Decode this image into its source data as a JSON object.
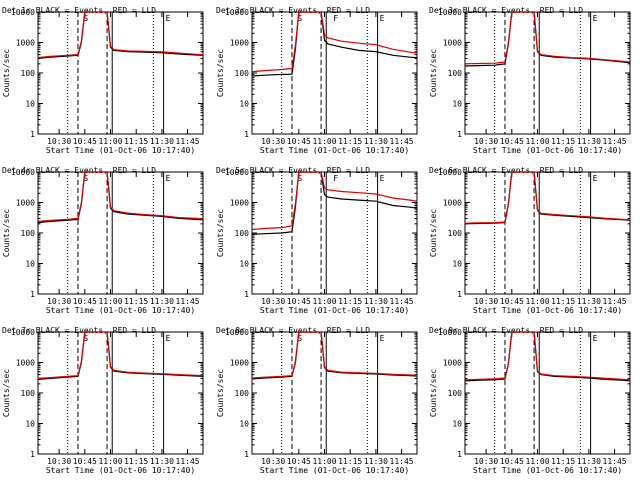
{
  "figure": {
    "black_label": "Events",
    "red_label": "LLD",
    "colors": {
      "background": "#ffffff",
      "events": "#000000",
      "lld": "#e00000"
    }
  },
  "chart_data": [
    {
      "type": "line",
      "title": "Det 1r BLACK = Events, RED = LLD",
      "xlabel": "Start Time (01-Oct-06 10:17:40)",
      "ylabel": "Counts/sec",
      "yscale": "log",
      "ylim": [
        1,
        10000
      ],
      "xlim": [
        "10:17:40",
        "11:54:00"
      ],
      "x_ticks": [
        "10:30",
        "10:45",
        "11:00",
        "11:15",
        "11:30",
        "11:45"
      ],
      "y_ticks": [
        "1",
        "10",
        "100",
        "1000",
        "10000"
      ],
      "markers": [
        "S",
        "",
        "E"
      ],
      "series": [
        {
          "name": "Events",
          "x": [
            "10:17:40",
            "10:25",
            "10:35",
            "10:38",
            "10:41",
            "10:43",
            "10:45",
            "10:55",
            "10:58",
            "11:00",
            "11:02",
            "11:10",
            "11:20",
            "11:30",
            "11:40",
            "11:50",
            "11:54"
          ],
          "y": [
            300,
            330,
            360,
            370,
            380,
            1000,
            10000,
            10000,
            10000,
            700,
            550,
            500,
            480,
            460,
            420,
            390,
            380
          ]
        },
        {
          "name": "LLD",
          "x": [
            "10:17:40",
            "10:25",
            "10:35",
            "10:38",
            "10:41",
            "10:43",
            "10:45",
            "10:55",
            "10:58",
            "11:00",
            "11:02",
            "11:10",
            "11:20",
            "11:30",
            "11:40",
            "11:50",
            "11:54"
          ],
          "y": [
            320,
            350,
            380,
            390,
            400,
            1100,
            10000,
            10000,
            10000,
            750,
            580,
            530,
            510,
            490,
            450,
            410,
            400
          ]
        }
      ]
    },
    {
      "type": "line",
      "title": "Det 2r BLACK = Events, RED = LLD",
      "xlabel": "Start Time (01-Oct-06 10:17:40)",
      "ylabel": "Counts/sec",
      "yscale": "log",
      "ylim": [
        1,
        10000
      ],
      "xlim": [
        "10:17:40",
        "11:54:00"
      ],
      "x_ticks": [
        "10:30",
        "10:45",
        "11:00",
        "11:15",
        "11:30",
        "11:45"
      ],
      "y_ticks": [
        "1",
        "10",
        "100",
        "1000",
        "10000"
      ],
      "markers": [
        "S",
        "F",
        "E"
      ],
      "series": [
        {
          "name": "Events",
          "x": [
            "10:17:40",
            "10:25",
            "10:35",
            "10:38",
            "10:41",
            "10:43",
            "10:45",
            "10:55",
            "10:58",
            "11:00",
            "11:02",
            "11:10",
            "11:20",
            "11:30",
            "11:40",
            "11:50",
            "11:54"
          ],
          "y": [
            80,
            85,
            90,
            90,
            92,
            600,
            10000,
            10000,
            10000,
            1200,
            900,
            700,
            550,
            500,
            380,
            330,
            320
          ]
        },
        {
          "name": "LLD",
          "x": [
            "10:17:40",
            "10:25",
            "10:35",
            "10:38",
            "10:41",
            "10:43",
            "10:45",
            "10:55",
            "10:58",
            "11:00",
            "11:02",
            "11:10",
            "11:20",
            "11:30",
            "11:40",
            "11:50",
            "11:54"
          ],
          "y": [
            110,
            120,
            130,
            135,
            140,
            800,
            10000,
            10000,
            10000,
            1800,
            1400,
            1100,
            950,
            850,
            600,
            480,
            450
          ]
        }
      ]
    },
    {
      "type": "line",
      "title": "Det 3r BLACK = Events, RED = LLD",
      "xlabel": "Start Time (01-Oct-06 10:17:40)",
      "ylabel": "Counts/sec",
      "yscale": "log",
      "ylim": [
        1,
        10000
      ],
      "xlim": [
        "10:17:40",
        "11:54:00"
      ],
      "x_ticks": [
        "10:30",
        "10:45",
        "11:00",
        "11:15",
        "11:30",
        "11:45"
      ],
      "y_ticks": [
        "1",
        "10",
        "100",
        "1000",
        "10000"
      ],
      "markers": [
        "",
        "",
        "E"
      ],
      "series": [
        {
          "name": "Events",
          "x": [
            "10:17:40",
            "10:25",
            "10:35",
            "10:38",
            "10:41",
            "10:43",
            "10:45",
            "10:55",
            "10:58",
            "11:00",
            "11:02",
            "11:10",
            "11:20",
            "11:30",
            "11:40",
            "11:50",
            "11:54"
          ],
          "y": [
            170,
            175,
            180,
            190,
            200,
            900,
            10000,
            10000,
            10000,
            500,
            380,
            330,
            310,
            290,
            260,
            230,
            220
          ]
        },
        {
          "name": "LLD",
          "x": [
            "10:17:40",
            "10:25",
            "10:35",
            "10:38",
            "10:41",
            "10:43",
            "10:45",
            "10:55",
            "10:58",
            "11:00",
            "11:02",
            "11:10",
            "11:20",
            "11:30",
            "11:40",
            "11:50",
            "11:54"
          ],
          "y": [
            200,
            205,
            210,
            220,
            230,
            1000,
            10000,
            10000,
            10000,
            530,
            400,
            350,
            320,
            300,
            270,
            240,
            230
          ]
        }
      ]
    },
    {
      "type": "line",
      "title": "Det 4r BLACK = Events, RED = LLD",
      "xlabel": "Start Time (01-Oct-06 10:17:40)",
      "ylabel": "Counts/sec",
      "yscale": "log",
      "ylim": [
        1,
        10000
      ],
      "xlim": [
        "10:17:40",
        "11:54:00"
      ],
      "x_ticks": [
        "10:30",
        "10:45",
        "11:00",
        "11:15",
        "11:30",
        "11:45"
      ],
      "y_ticks": [
        "1",
        "10",
        "100",
        "1000",
        "10000"
      ],
      "markers": [
        "S",
        "",
        "E"
      ],
      "series": [
        {
          "name": "Events",
          "x": [
            "10:17:40",
            "10:25",
            "10:35",
            "10:38",
            "10:41",
            "10:43",
            "10:45",
            "10:55",
            "10:58",
            "11:00",
            "11:02",
            "11:10",
            "11:20",
            "11:30",
            "11:40",
            "11:50",
            "11:54"
          ],
          "y": [
            220,
            240,
            260,
            270,
            280,
            900,
            10000,
            10000,
            10000,
            650,
            500,
            420,
            380,
            350,
            300,
            280,
            270
          ]
        },
        {
          "name": "LLD",
          "x": [
            "10:17:40",
            "10:25",
            "10:35",
            "10:38",
            "10:41",
            "10:43",
            "10:45",
            "10:55",
            "10:58",
            "11:00",
            "11:02",
            "11:10",
            "11:20",
            "11:30",
            "11:40",
            "11:50",
            "11:54"
          ],
          "y": [
            240,
            260,
            280,
            290,
            300,
            1000,
            10000,
            10000,
            10000,
            700,
            540,
            450,
            400,
            370,
            320,
            300,
            290
          ]
        }
      ]
    },
    {
      "type": "line",
      "title": "Det 5r BLACK = Events, RED = LLD",
      "xlabel": "Start Time (01-Oct-06 10:17:40)",
      "ylabel": "Counts/sec",
      "yscale": "log",
      "ylim": [
        1,
        10000
      ],
      "xlim": [
        "10:17:40",
        "11:54:00"
      ],
      "x_ticks": [
        "10:30",
        "10:45",
        "11:00",
        "11:15",
        "11:30",
        "11:45"
      ],
      "y_ticks": [
        "1",
        "10",
        "100",
        "1000",
        "10000"
      ],
      "markers": [
        "S",
        "F",
        "E"
      ],
      "series": [
        {
          "name": "Events",
          "x": [
            "10:17:40",
            "10:25",
            "10:35",
            "10:38",
            "10:41",
            "10:43",
            "10:45",
            "10:55",
            "10:58",
            "11:00",
            "11:02",
            "11:10",
            "11:20",
            "11:30",
            "11:40",
            "11:50",
            "11:54"
          ],
          "y": [
            90,
            95,
            100,
            105,
            110,
            700,
            10000,
            10000,
            10000,
            1800,
            1500,
            1300,
            1200,
            1100,
            800,
            700,
            650
          ]
        },
        {
          "name": "LLD",
          "x": [
            "10:17:40",
            "10:25",
            "10:35",
            "10:38",
            "10:41",
            "10:43",
            "10:45",
            "10:55",
            "10:58",
            "11:00",
            "11:02",
            "11:10",
            "11:20",
            "11:30",
            "11:40",
            "11:50",
            "11:54"
          ],
          "y": [
            130,
            140,
            150,
            160,
            170,
            900,
            10000,
            10000,
            10000,
            3000,
            2600,
            2300,
            2100,
            1900,
            1400,
            1200,
            1100
          ]
        }
      ]
    },
    {
      "type": "line",
      "title": "Det 6r BLACK = Events, RED = LLD",
      "xlabel": "Start Time (01-Oct-06 10:17:40)",
      "ylabel": "Counts/sec",
      "yscale": "log",
      "ylim": [
        1,
        10000
      ],
      "xlim": [
        "10:17:40",
        "11:54:00"
      ],
      "x_ticks": [
        "10:30",
        "10:45",
        "11:00",
        "11:15",
        "11:30",
        "11:45"
      ],
      "y_ticks": [
        "1",
        "10",
        "100",
        "1000",
        "10000"
      ],
      "markers": [
        "",
        "",
        "E"
      ],
      "series": [
        {
          "name": "Events",
          "x": [
            "10:17:40",
            "10:25",
            "10:35",
            "10:38",
            "10:41",
            "10:43",
            "10:45",
            "10:55",
            "10:58",
            "11:00",
            "11:02",
            "11:10",
            "11:20",
            "11:30",
            "11:40",
            "11:50",
            "11:54"
          ],
          "y": [
            200,
            205,
            210,
            215,
            220,
            900,
            10000,
            10000,
            10000,
            550,
            420,
            380,
            350,
            320,
            290,
            270,
            260
          ]
        },
        {
          "name": "LLD",
          "x": [
            "10:17:40",
            "10:25",
            "10:35",
            "10:38",
            "10:41",
            "10:43",
            "10:45",
            "10:55",
            "10:58",
            "11:00",
            "11:02",
            "11:10",
            "11:20",
            "11:30",
            "11:40",
            "11:50",
            "11:54"
          ],
          "y": [
            210,
            215,
            220,
            225,
            230,
            950,
            10000,
            10000,
            10000,
            580,
            440,
            400,
            370,
            340,
            300,
            280,
            270
          ]
        }
      ]
    },
    {
      "type": "line",
      "title": "Det 7r BLACK = Events, RED = LLD",
      "xlabel": "Start Time (01-Oct-06 10:17:40)",
      "ylabel": "Counts/sec",
      "yscale": "log",
      "ylim": [
        1,
        10000
      ],
      "xlim": [
        "10:17:40",
        "11:54:00"
      ],
      "x_ticks": [
        "10:30",
        "10:45",
        "11:00",
        "11:15",
        "11:30",
        "11:45"
      ],
      "y_ticks": [
        "1",
        "10",
        "100",
        "1000",
        "10000"
      ],
      "markers": [
        "S",
        "",
        "E"
      ],
      "series": [
        {
          "name": "Events",
          "x": [
            "10:17:40",
            "10:25",
            "10:35",
            "10:38",
            "10:41",
            "10:43",
            "10:45",
            "10:55",
            "10:58",
            "11:00",
            "11:02",
            "11:10",
            "11:20",
            "11:30",
            "11:40",
            "11:50",
            "11:54"
          ],
          "y": [
            280,
            300,
            330,
            340,
            350,
            1000,
            10000,
            10000,
            10000,
            700,
            520,
            460,
            430,
            410,
            380,
            360,
            350
          ]
        },
        {
          "name": "LLD",
          "x": [
            "10:17:40",
            "10:25",
            "10:35",
            "10:38",
            "10:41",
            "10:43",
            "10:45",
            "10:55",
            "10:58",
            "11:00",
            "11:02",
            "11:10",
            "11:20",
            "11:30",
            "11:40",
            "11:50",
            "11:54"
          ],
          "y": [
            300,
            320,
            350,
            360,
            370,
            1100,
            10000,
            10000,
            10000,
            740,
            550,
            480,
            450,
            430,
            400,
            380,
            370
          ]
        }
      ]
    },
    {
      "type": "line",
      "title": "Det 8r BLACK = Events, RED = LLD",
      "xlabel": "Start Time (01-Oct-06 10:17:40)",
      "ylabel": "Counts/sec",
      "yscale": "log",
      "ylim": [
        1,
        10000
      ],
      "xlim": [
        "10:17:40",
        "11:54:00"
      ],
      "x_ticks": [
        "10:30",
        "10:45",
        "11:00",
        "11:15",
        "11:30",
        "11:45"
      ],
      "y_ticks": [
        "1",
        "10",
        "100",
        "1000",
        "10000"
      ],
      "markers": [
        "S",
        "",
        "E"
      ],
      "series": [
        {
          "name": "Events",
          "x": [
            "10:17:40",
            "10:25",
            "10:35",
            "10:38",
            "10:41",
            "10:43",
            "10:45",
            "10:55",
            "10:58",
            "11:00",
            "11:02",
            "11:10",
            "11:20",
            "11:30",
            "11:40",
            "11:50",
            "11:54"
          ],
          "y": [
            290,
            310,
            330,
            340,
            350,
            1000,
            10000,
            10000,
            10000,
            680,
            520,
            460,
            440,
            420,
            390,
            370,
            360
          ]
        },
        {
          "name": "LLD",
          "x": [
            "10:17:40",
            "10:25",
            "10:35",
            "10:38",
            "10:41",
            "10:43",
            "10:45",
            "10:55",
            "10:58",
            "11:00",
            "11:02",
            "11:10",
            "11:20",
            "11:30",
            "11:40",
            "11:50",
            "11:54"
          ],
          "y": [
            310,
            330,
            350,
            360,
            370,
            1100,
            10000,
            10000,
            10000,
            720,
            550,
            480,
            460,
            440,
            410,
            390,
            380
          ]
        }
      ]
    },
    {
      "type": "line",
      "title": "Det 9r BLACK = Events, RED = LLD",
      "xlabel": "Start Time (01-Oct-06 10:17:40)",
      "ylabel": "Counts/sec",
      "yscale": "log",
      "ylim": [
        1,
        10000
      ],
      "xlim": [
        "10:17:40",
        "11:54:00"
      ],
      "x_ticks": [
        "10:30",
        "10:45",
        "11:00",
        "11:15",
        "11:30",
        "11:45"
      ],
      "y_ticks": [
        "1",
        "10",
        "100",
        "1000",
        "10000"
      ],
      "markers": [
        "",
        "",
        "E"
      ],
      "series": [
        {
          "name": "Events",
          "x": [
            "10:17:40",
            "10:25",
            "10:35",
            "10:38",
            "10:41",
            "10:43",
            "10:45",
            "10:55",
            "10:58",
            "11:00",
            "11:02",
            "11:10",
            "11:20",
            "11:30",
            "11:40",
            "11:50",
            "11:54"
          ],
          "y": [
            250,
            260,
            270,
            280,
            290,
            900,
            10000,
            10000,
            10000,
            500,
            400,
            350,
            330,
            310,
            280,
            260,
            250
          ]
        },
        {
          "name": "LLD",
          "x": [
            "10:17:40",
            "10:25",
            "10:35",
            "10:38",
            "10:41",
            "10:43",
            "10:45",
            "10:55",
            "10:58",
            "11:00",
            "11:02",
            "11:10",
            "11:20",
            "11:30",
            "11:40",
            "11:50",
            "11:54"
          ],
          "y": [
            270,
            280,
            290,
            300,
            310,
            950,
            10000,
            10000,
            10000,
            530,
            420,
            370,
            350,
            330,
            300,
            280,
            270
          ]
        }
      ]
    }
  ]
}
